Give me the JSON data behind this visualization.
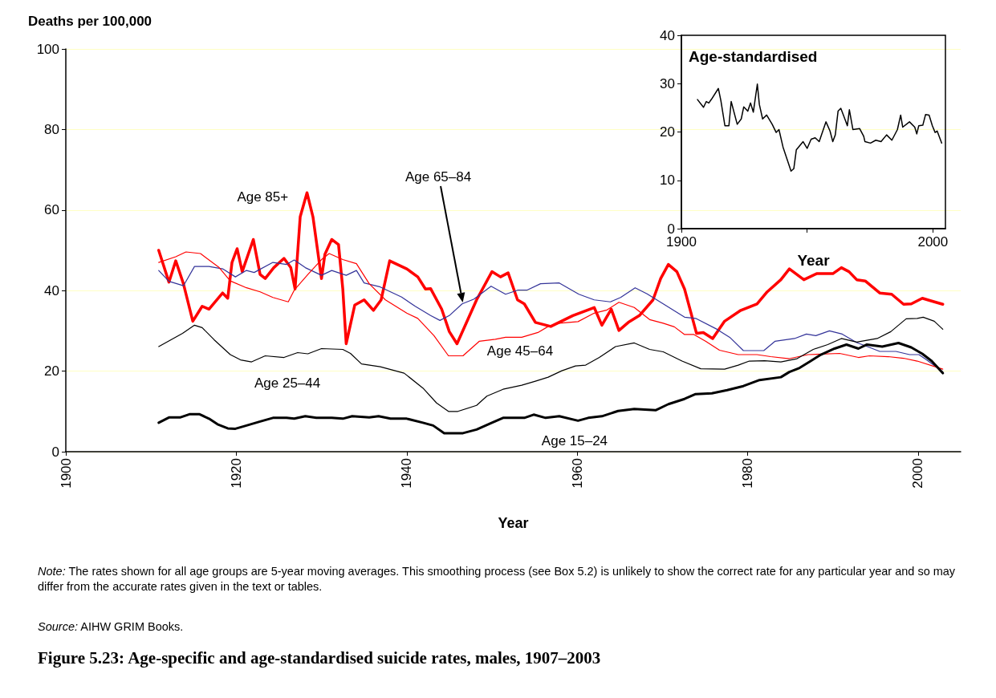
{
  "chart_data": [
    {
      "type": "line",
      "title": "Figure 5.23: Age-specific and age-standardised suicide rates, males, 1907–2003",
      "xlabel": "Year",
      "ylabel": "Deaths per 100,000",
      "annotations": [
        "Note: The rates shown for all age groups are 5-year moving averages. This smoothing process (see Box 5.2) is unlikely to show the correct rate for any particular year and so may differ from the accurate rates given in the text or tables.",
        "Source: AIHW GRIM Books."
      ],
      "xlim": [
        1900,
        2005
      ],
      "xticks": [
        1900,
        1920,
        1940,
        1960,
        1980,
        2000
      ],
      "ylim": [
        0,
        100
      ],
      "yticks": [
        0,
        20,
        40,
        60,
        80,
        100
      ],
      "grid": "y",
      "legend": false,
      "marker": "none",
      "line_style": "solid",
      "series": [
        {
          "name": "Age 85+",
          "color": "#ff0000",
          "x": [
            1910.9,
            1912.1,
            1912.9,
            1913.8,
            1914.9,
            1916.0,
            1916.8,
            1918.4,
            1919.0,
            1919.5,
            1920.1,
            1920.7,
            1922.0,
            1922.8,
            1923.4,
            1924.4,
            1925.6,
            1926.4,
            1926.9,
            1927.5,
            1928.3,
            1929.0,
            1930.0,
            1930.4,
            1931.2,
            1932.0,
            1932.5,
            1932.9,
            1933.9,
            1935.0,
            1936.1,
            1937.0,
            1938.0,
            1940.0,
            1941.3,
            1942.2,
            1942.8,
            1944.1,
            1945.0,
            1945.9,
            1948.2,
            1950.0,
            1951.0,
            1951.9,
            1953.0,
            1953.8,
            1955.1,
            1956.9,
            1959.5,
            1962.0,
            1962.9,
            1964.0,
            1964.9,
            1966.0,
            1967.3,
            1968.9,
            1969.8,
            1970.7,
            1971.7,
            1972.6,
            1974.0,
            1974.8,
            1975.9,
            1977.3,
            1979.2,
            1981.1,
            1982.3,
            1983.9,
            1984.9,
            1986.6,
            1988.1,
            1990.0,
            1991.0,
            1991.9,
            1992.8,
            1993.8,
            1995.5,
            1996.9,
            1998.3,
            1999.2,
            2000.5,
            2001.6,
            2002.9
          ],
          "values": [
            50.0,
            42.1,
            47.4,
            41.7,
            32.4,
            36.1,
            35.4,
            39.4,
            38.1,
            47.0,
            50.4,
            44.7,
            52.7,
            44.0,
            43.0,
            45.7,
            48.0,
            45.7,
            40.4,
            58.3,
            64.3,
            58.3,
            43.0,
            49.0,
            52.7,
            51.4,
            40.4,
            26.8,
            36.4,
            37.7,
            35.1,
            37.7,
            47.4,
            45.4,
            43.4,
            40.4,
            40.5,
            35.4,
            29.8,
            26.8,
            37.7,
            44.7,
            43.4,
            44.4,
            37.7,
            36.7,
            32.1,
            31.1,
            33.8,
            35.8,
            31.4,
            35.4,
            30.1,
            32.1,
            33.8,
            37.7,
            43.0,
            46.5,
            44.7,
            40.4,
            29.4,
            29.6,
            28.1,
            32.4,
            35.1,
            36.7,
            39.7,
            42.7,
            45.4,
            42.7,
            44.2,
            44.2,
            45.7,
            44.7,
            42.7,
            42.4,
            39.4,
            39.1,
            36.6,
            36.7,
            38.1,
            37.4,
            36.6
          ]
        },
        {
          "name": "Age 65–84",
          "color": "#333399",
          "x": [
            1910.9,
            1912.1,
            1913.8,
            1915.1,
            1916.8,
            1918.4,
            1919.9,
            1921.2,
            1922.1,
            1924.3,
            1925.9,
            1926.8,
            1928.1,
            1930.0,
            1931.2,
            1932.9,
            1934.1,
            1935.0,
            1936.9,
            1939.4,
            1941.0,
            1942.8,
            1943.9,
            1945.0,
            1946.5,
            1947.9,
            1949.9,
            1951.6,
            1953.0,
            1954.1,
            1955.7,
            1957.9,
            1960.2,
            1962.0,
            1963.9,
            1965.1,
            1966.8,
            1968.2,
            1970.1,
            1972.6,
            1973.9,
            1976.4,
            1977.9,
            1979.5,
            1981.9,
            1983.2,
            1985.5,
            1986.9,
            1988.0,
            1989.6,
            1991.1,
            1992.8,
            1994.3,
            1995.5,
            1997.4,
            1999.0,
            2000.1,
            2001.0,
            2002.9
          ],
          "values": [
            45.0,
            42.3,
            41.2,
            46.0,
            46.0,
            45.4,
            43.4,
            45.0,
            44.5,
            47.0,
            46.5,
            47.6,
            45.7,
            43.8,
            45.0,
            43.8,
            45.0,
            41.9,
            40.9,
            38.4,
            36.1,
            33.8,
            32.6,
            33.8,
            36.7,
            37.9,
            41.1,
            39.1,
            40.1,
            40.1,
            41.7,
            41.9,
            39.1,
            37.7,
            37.2,
            38.3,
            40.7,
            39.2,
            36.7,
            33.4,
            33.1,
            30.4,
            28.4,
            25.1,
            25.1,
            27.4,
            28.1,
            29.2,
            28.8,
            30.0,
            29.2,
            27.1,
            25.9,
            24.9,
            24.9,
            24.1,
            24.1,
            22.8,
            19.8
          ]
        },
        {
          "name": "Age 45–64",
          "color": "#ff0000",
          "x": [
            1910.9,
            1912.9,
            1914.1,
            1915.8,
            1918.0,
            1919.3,
            1921.2,
            1922.8,
            1924.3,
            1926.1,
            1926.8,
            1928.4,
            1930.0,
            1930.9,
            1932.5,
            1934.1,
            1935.6,
            1937.5,
            1940.0,
            1941.3,
            1943.2,
            1944.9,
            1946.6,
            1948.5,
            1950.4,
            1951.6,
            1953.5,
            1955.4,
            1956.6,
            1957.9,
            1960.1,
            1962.0,
            1963.5,
            1964.9,
            1966.7,
            1968.5,
            1970.1,
            1971.4,
            1972.6,
            1973.7,
            1975.1,
            1976.7,
            1978.9,
            1981.1,
            1982.7,
            1984.9,
            1987.1,
            1990.8,
            1993.0,
            1994.3,
            1996.5,
            1998.3,
            1999.9,
            2002.9
          ],
          "values": [
            47.0,
            48.4,
            49.6,
            49.2,
            45.7,
            42.4,
            40.7,
            39.7,
            38.3,
            37.2,
            40.1,
            44.0,
            47.7,
            49.2,
            47.7,
            46.7,
            41.7,
            37.7,
            34.4,
            33.1,
            28.8,
            23.8,
            23.8,
            27.4,
            27.9,
            28.4,
            28.4,
            29.6,
            31.1,
            31.9,
            32.3,
            34.4,
            35.2,
            37.1,
            35.8,
            32.8,
            31.9,
            31.0,
            29.1,
            29.1,
            27.4,
            25.2,
            24.1,
            24.1,
            23.6,
            23.1,
            24.1,
            24.4,
            23.4,
            23.8,
            23.6,
            23.2,
            22.5,
            20.5
          ]
        },
        {
          "name": "Age 25–44",
          "color": "#000000",
          "x": [
            1910.9,
            1913.7,
            1915.1,
            1916.0,
            1917.4,
            1919.3,
            1920.5,
            1921.8,
            1923.4,
            1925.6,
            1927.2,
            1928.4,
            1930.0,
            1932.5,
            1933.4,
            1934.7,
            1936.9,
            1939.7,
            1941.9,
            1943.5,
            1944.9,
            1946.0,
            1948.2,
            1949.4,
            1951.3,
            1953.5,
            1955.1,
            1956.6,
            1958.2,
            1959.8,
            1961.0,
            1962.6,
            1964.5,
            1966.7,
            1968.5,
            1970.1,
            1972.3,
            1974.5,
            1977.3,
            1978.9,
            1980.2,
            1982.0,
            1983.9,
            1985.8,
            1987.7,
            1989.4,
            1991.0,
            1992.8,
            1995.2,
            1996.8,
            1998.6,
            1999.9,
            2000.6,
            2001.9,
            2002.9
          ],
          "values": [
            26.1,
            29.4,
            31.4,
            30.8,
            27.8,
            24.1,
            22.8,
            22.3,
            23.8,
            23.4,
            24.6,
            24.3,
            25.6,
            25.4,
            24.4,
            21.8,
            21.1,
            19.5,
            15.8,
            12.1,
            10.0,
            10.0,
            11.5,
            13.8,
            15.5,
            16.5,
            17.5,
            18.5,
            20.1,
            21.3,
            21.5,
            23.4,
            26.1,
            27.0,
            25.4,
            24.8,
            22.5,
            20.6,
            20.5,
            21.5,
            22.5,
            22.6,
            22.3,
            23.1,
            25.4,
            26.6,
            28.1,
            27.2,
            28.1,
            29.8,
            33.0,
            33.1,
            33.4,
            32.4,
            30.4
          ]
        },
        {
          "name": "Age 15–24",
          "color": "#000000",
          "x": [
            1910.9,
            1912.1,
            1913.4,
            1914.5,
            1915.7,
            1916.8,
            1917.8,
            1919.0,
            1919.9,
            1921.2,
            1922.8,
            1924.3,
            1925.9,
            1926.8,
            1928.1,
            1929.4,
            1931.2,
            1932.5,
            1933.6,
            1935.6,
            1936.7,
            1938.1,
            1940.0,
            1941.9,
            1943.1,
            1944.4,
            1946.6,
            1948.2,
            1950.0,
            1951.3,
            1953.8,
            1954.9,
            1956.3,
            1957.9,
            1960.1,
            1961.3,
            1962.9,
            1964.8,
            1966.7,
            1969.2,
            1970.7,
            1972.6,
            1973.9,
            1975.8,
            1977.6,
            1979.5,
            1981.4,
            1983.9,
            1984.9,
            1986.1,
            1987.4,
            1988.6,
            1990.2,
            1991.6,
            1993.0,
            1994.0,
            1995.8,
            1997.7,
            1999.2,
            2000.5,
            2001.6,
            2002.9
          ],
          "values": [
            7.2,
            8.5,
            8.5,
            9.3,
            9.3,
            8.2,
            6.8,
            5.8,
            5.7,
            6.5,
            7.5,
            8.4,
            8.4,
            8.2,
            8.8,
            8.4,
            8.4,
            8.2,
            8.8,
            8.5,
            8.8,
            8.2,
            8.2,
            7.2,
            6.5,
            4.6,
            4.6,
            5.5,
            7.2,
            8.4,
            8.4,
            9.2,
            8.4,
            8.8,
            7.7,
            8.4,
            8.8,
            10.1,
            10.6,
            10.3,
            11.8,
            13.1,
            14.3,
            14.5,
            15.3,
            16.3,
            17.8,
            18.5,
            19.8,
            20.8,
            22.5,
            24.1,
            25.6,
            26.6,
            25.6,
            26.6,
            26.1,
            27.0,
            25.9,
            24.3,
            22.5,
            19.5
          ]
        }
      ]
    },
    {
      "type": "line",
      "title": "Age-standardised",
      "xlabel": "Year",
      "xlim": [
        1900,
        2005
      ],
      "xticks": [
        1900,
        {
          "value": 1950,
          "label": null
        },
        2000
      ],
      "ylim": [
        0,
        40
      ],
      "yticks": [
        0,
        10,
        20,
        30,
        40
      ],
      "legend": false,
      "marker": "none",
      "line_style": "solid",
      "series": [
        {
          "color": "#000000",
          "x": [
            1906.4,
            1908.8,
            1909.9,
            1910.9,
            1912.0,
            1914.7,
            1915.7,
            1917.3,
            1918.9,
            1919.8,
            1922.2,
            1923.8,
            1924.8,
            1926.4,
            1927.5,
            1928.6,
            1930.2,
            1931.0,
            1932.3,
            1933.9,
            1936.1,
            1937.7,
            1938.8,
            1940.4,
            1942.0,
            1943.6,
            1944.7,
            1945.7,
            1948.4,
            1950.0,
            1951.6,
            1953.2,
            1954.8,
            1957.5,
            1959.1,
            1960.2,
            1961.2,
            1962.3,
            1963.4,
            1965.0,
            1966.0,
            1966.8,
            1968.2,
            1970.9,
            1972.5,
            1973.0,
            1975.2,
            1977.3,
            1979.4,
            1981.6,
            1983.7,
            1985.9,
            1987.2,
            1988.0,
            1990.7,
            1992.8,
            1993.6,
            1994.4,
            1996.0,
            1997.1,
            1998.5,
            1999.8,
            2000.9,
            2001.7,
            2003.5
          ],
          "values": [
            26.7,
            25.1,
            26.3,
            26.0,
            26.8,
            29.0,
            26.5,
            21.3,
            21.3,
            26.3,
            21.6,
            22.7,
            25.2,
            24.3,
            26.0,
            24.1,
            29.9,
            25.7,
            22.7,
            23.5,
            21.6,
            19.9,
            20.5,
            16.9,
            14.4,
            11.9,
            12.4,
            16.3,
            18.0,
            16.6,
            18.5,
            18.8,
            18.0,
            22.1,
            20.2,
            18.0,
            19.4,
            24.3,
            24.9,
            22.7,
            21.3,
            24.6,
            20.5,
            20.7,
            19.1,
            18.0,
            17.7,
            18.3,
            18.0,
            19.4,
            18.3,
            20.5,
            23.5,
            21.0,
            22.1,
            21.0,
            19.6,
            21.3,
            21.4,
            23.6,
            23.5,
            21.3,
            19.9,
            20.2,
            17.7
          ]
        }
      ]
    }
  ]
}
